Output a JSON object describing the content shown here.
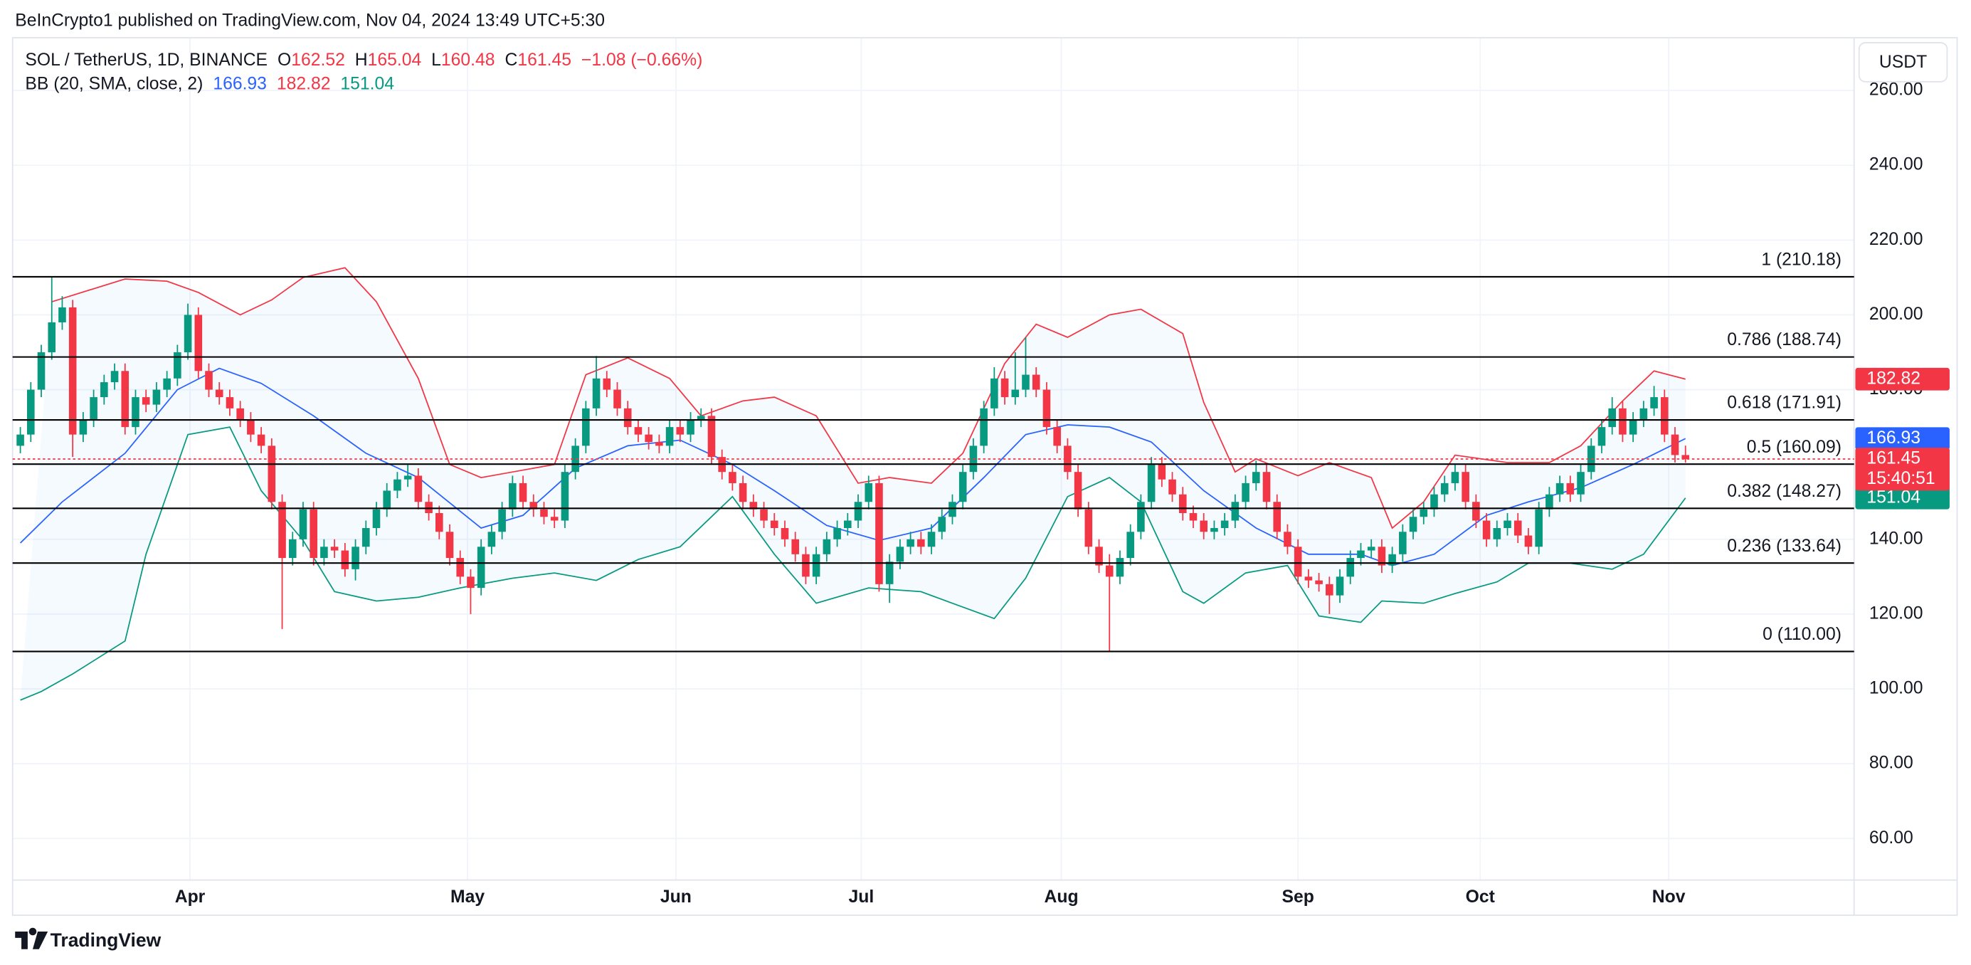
{
  "header": "BeInCrypto1 published on TradingView.com, Nov 04, 2024 13:49 UTC+5:30",
  "footer": "TradingView",
  "chart_data": {
    "type": "candlestick",
    "symbol": "SOL / TetherUS, 1D, BINANCE",
    "ohlc_labels": [
      "O",
      "H",
      "L",
      "C"
    ],
    "change": "−1.08 (−0.66%)",
    "indicator": "BB (20, SMA, close, 2)",
    "currency": "USDT",
    "countdown": "15:40:51",
    "grid": true,
    "xlim": [
      -0.74,
      175.1
    ],
    "xticks": [
      {
        "value": 16.2,
        "label": "Apr"
      },
      {
        "value": 42.7,
        "label": "May"
      },
      {
        "value": 62.6,
        "label": "Jun"
      },
      {
        "value": 80.3,
        "label": "Jul"
      },
      {
        "value": 99.4,
        "label": "Aug"
      },
      {
        "value": 122.0,
        "label": "Sep"
      },
      {
        "value": 139.4,
        "label": "Oct"
      },
      {
        "value": 157.4,
        "label": "Nov"
      }
    ],
    "ylim": [
      48.9,
      274.1
    ],
    "yticks": [
      {
        "value": 60,
        "label": "60.00"
      },
      {
        "value": 80,
        "label": "80.00"
      },
      {
        "value": 100,
        "label": "100.00"
      },
      {
        "value": 120,
        "label": "120.00"
      },
      {
        "value": 140,
        "label": "140.00"
      },
      {
        "value": 160,
        "label": "160.00"
      },
      {
        "value": 180,
        "label": "180.00"
      },
      {
        "value": 200,
        "label": "200.00"
      },
      {
        "value": 220,
        "label": "220.00"
      },
      {
        "value": 240,
        "label": "240.00"
      },
      {
        "value": 260,
        "label": "260.00"
      }
    ],
    "candles": {
      "up_color": "#089981",
      "down_color": "#f23645",
      "open": [
        165,
        168,
        180,
        190,
        198,
        202,
        168,
        172,
        178,
        182,
        185,
        170,
        178,
        176,
        180,
        183,
        190,
        200,
        185,
        180,
        178,
        175,
        172,
        168,
        165,
        150,
        135,
        140,
        148,
        135,
        138,
        137,
        132,
        138,
        143,
        148,
        153,
        156,
        157,
        150,
        147,
        142,
        135,
        130,
        127,
        138,
        142,
        148,
        155,
        150,
        148,
        146,
        145,
        158,
        165,
        175,
        183,
        180,
        175,
        170,
        168,
        166,
        165,
        170,
        168,
        172,
        173,
        162,
        158,
        155,
        150,
        148,
        145,
        143,
        140,
        136,
        130,
        136,
        140,
        143,
        145,
        150,
        155,
        128,
        134,
        138,
        140,
        138,
        142,
        146,
        150,
        158,
        165,
        175,
        183,
        178,
        180,
        184,
        180,
        170,
        165,
        158,
        148,
        138,
        133,
        130,
        135,
        142,
        150,
        160,
        156,
        152,
        147,
        145,
        142,
        143,
        145,
        150,
        155,
        158,
        150,
        142,
        138,
        130,
        129,
        128,
        125,
        130,
        135,
        137,
        138,
        133,
        136,
        142,
        146,
        148,
        152,
        155,
        158,
        150,
        145,
        140,
        143,
        145,
        141,
        138,
        148,
        152,
        155,
        152,
        158,
        165,
        170,
        175,
        168,
        172,
        175,
        178,
        168,
        162.52
      ],
      "high": [
        170,
        182,
        192,
        210,
        205,
        204,
        174,
        180,
        184,
        187,
        187,
        180,
        180,
        182,
        185,
        192,
        203,
        202,
        187,
        182,
        180,
        177,
        174,
        170,
        167,
        152,
        142,
        150,
        150,
        140,
        140,
        139,
        140,
        145,
        150,
        155,
        158,
        160,
        159,
        152,
        149,
        144,
        137,
        132,
        140,
        144,
        150,
        157,
        157,
        152,
        150,
        148,
        160,
        167,
        177,
        189,
        185,
        182,
        177,
        172,
        170,
        168,
        172,
        172,
        174,
        175,
        175,
        164,
        160,
        157,
        152,
        150,
        147,
        145,
        142,
        138,
        138,
        142,
        145,
        147,
        152,
        157,
        157,
        136,
        140,
        142,
        142,
        144,
        148,
        152,
        160,
        167,
        177,
        186,
        185,
        190,
        194,
        186,
        182,
        172,
        167,
        160,
        150,
        140,
        136,
        137,
        144,
        152,
        162,
        162,
        158,
        154,
        149,
        147,
        145,
        147,
        152,
        157,
        161,
        160,
        152,
        144,
        140,
        132,
        131,
        130,
        132,
        137,
        139,
        140,
        140,
        138,
        144,
        148,
        150,
        154,
        157,
        160,
        160,
        152,
        147,
        145,
        147,
        147,
        143,
        150,
        154,
        157,
        157,
        160,
        167,
        172,
        178,
        177,
        174,
        177,
        181,
        180,
        170,
        165.04
      ],
      "low": [
        163,
        166,
        178,
        188,
        196,
        162,
        166,
        170,
        176,
        180,
        168,
        168,
        174,
        174,
        178,
        181,
        188,
        183,
        178,
        176,
        173,
        170,
        166,
        163,
        148,
        116,
        133,
        138,
        133,
        133,
        135,
        130,
        129,
        136,
        141,
        146,
        151,
        154,
        148,
        145,
        140,
        133,
        128,
        120,
        125,
        136,
        140,
        146,
        148,
        146,
        144,
        143,
        143,
        156,
        163,
        173,
        178,
        173,
        168,
        166,
        164,
        163,
        163,
        166,
        166,
        170,
        160,
        156,
        153,
        148,
        146,
        143,
        141,
        138,
        134,
        128,
        128,
        134,
        138,
        141,
        143,
        148,
        126,
        123,
        132,
        136,
        136,
        136,
        140,
        144,
        148,
        156,
        163,
        173,
        176,
        176,
        178,
        178,
        168,
        163,
        156,
        146,
        136,
        131,
        110,
        128,
        133,
        140,
        148,
        154,
        150,
        145,
        143,
        140,
        140,
        141,
        143,
        148,
        153,
        148,
        140,
        136,
        128,
        127,
        126,
        120,
        123,
        128,
        133,
        135,
        131,
        131,
        134,
        140,
        144,
        146,
        150,
        153,
        148,
        143,
        138,
        138,
        141,
        139,
        136,
        136,
        146,
        150,
        150,
        150,
        156,
        163,
        168,
        166,
        166,
        170,
        173,
        166,
        160.5,
        160.48
      ],
      "close": [
        168,
        180,
        190,
        198,
        202,
        168,
        172,
        178,
        182,
        185,
        170,
        178,
        176,
        180,
        183,
        190,
        200,
        185,
        180,
        178,
        175,
        172,
        168,
        165,
        150,
        135,
        140,
        148,
        135,
        138,
        137,
        132,
        138,
        143,
        148,
        153,
        156,
        157,
        150,
        147,
        142,
        135,
        130,
        127,
        138,
        142,
        148,
        155,
        150,
        148,
        146,
        145,
        158,
        165,
        175,
        183,
        180,
        175,
        170,
        168,
        166,
        165,
        170,
        168,
        172,
        173,
        162,
        158,
        155,
        150,
        148,
        145,
        143,
        140,
        136,
        130,
        136,
        140,
        143,
        145,
        150,
        155,
        128,
        134,
        138,
        140,
        138,
        142,
        146,
        150,
        158,
        165,
        175,
        183,
        178,
        180,
        184,
        180,
        170,
        165,
        158,
        148,
        138,
        133,
        130,
        135,
        142,
        150,
        160,
        156,
        152,
        147,
        145,
        142,
        143,
        145,
        150,
        155,
        158,
        150,
        142,
        138,
        130,
        129,
        128,
        125,
        130,
        135,
        137,
        138,
        133,
        136,
        142,
        146,
        148,
        152,
        155,
        158,
        150,
        145,
        140,
        143,
        145,
        141,
        138,
        148,
        152,
        155,
        152,
        158,
        165,
        170,
        175,
        168,
        172,
        175,
        178,
        168,
        162.52,
        161.45
      ]
    },
    "bands": [
      {
        "color": "#f23645",
        "x": [
          3,
          10,
          14,
          17,
          21,
          24,
          27,
          31,
          34,
          38,
          41,
          44,
          47,
          51,
          54,
          58,
          62,
          65,
          69,
          72,
          76,
          80,
          83,
          87,
          90,
          94,
          97,
          100,
          104,
          107,
          111,
          113,
          116,
          118,
          122,
          125,
          129,
          131,
          134,
          137,
          142,
          146,
          149,
          153,
          156,
          159
        ],
        "values": [
          203.5,
          209.6,
          209,
          206,
          200,
          204,
          210,
          212.6,
          203.5,
          183,
          160,
          156.5,
          158,
          160,
          184,
          188.5,
          183,
          173,
          177,
          178,
          173,
          155,
          156.5,
          155,
          163,
          187,
          197.5,
          194,
          200,
          201.5,
          195,
          176.6,
          158,
          161.5,
          157,
          160.5,
          156.5,
          143,
          150,
          162.5,
          160.5,
          160.5,
          165,
          177,
          185,
          182.82
        ]
      },
      {
        "color": "#2962ff",
        "x": [
          0,
          4,
          10,
          15,
          19,
          23,
          28,
          33,
          38,
          44,
          48,
          53,
          58,
          63,
          68,
          72,
          77,
          82,
          87,
          92,
          96,
          100,
          104,
          108,
          113,
          118,
          123,
          128,
          131,
          135,
          140,
          144,
          149,
          154,
          159
        ],
        "values": [
          139,
          150,
          163,
          180,
          185.7,
          181.7,
          173,
          163,
          156.5,
          143,
          146.4,
          159,
          165,
          166.5,
          160,
          153,
          143.7,
          139.7,
          143,
          156.5,
          168,
          170.6,
          170,
          166,
          153,
          143,
          136,
          136,
          133,
          136,
          146.4,
          150,
          153.8,
          160,
          166.93
        ]
      },
      {
        "color": "#089981",
        "x": [
          0,
          2,
          5,
          10,
          12,
          16,
          20,
          23,
          27,
          30,
          34,
          38,
          42,
          47,
          51,
          55,
          59,
          63,
          68,
          72,
          76,
          81,
          86,
          89,
          93,
          96,
          100,
          104,
          107,
          111,
          113,
          117,
          121,
          124,
          128,
          130,
          134,
          137,
          141,
          144,
          148,
          152,
          155,
          159
        ],
        "values": [
          97,
          99.3,
          104,
          112.8,
          136,
          168,
          170,
          153,
          139.7,
          126,
          123.5,
          124.5,
          127,
          129.6,
          131,
          129,
          134.6,
          138,
          151.4,
          136,
          122.9,
          127,
          126,
          122.9,
          118.8,
          129.6,
          151.4,
          156.5,
          150,
          126,
          122.9,
          131,
          133,
          119.5,
          117.8,
          123.5,
          122.9,
          125.5,
          128.6,
          133.6,
          133.6,
          132,
          136,
          151.04
        ]
      }
    ],
    "fib_levels": [
      {
        "value": 210.18,
        "label": "1 (210.18)"
      },
      {
        "value": 188.74,
        "label": "0.786 (188.74)"
      },
      {
        "value": 171.91,
        "label": "0.618 (171.91)"
      },
      {
        "value": 160.09,
        "label": "0.5 (160.09)"
      },
      {
        "value": 148.27,
        "label": "0.382 (148.27)"
      },
      {
        "value": 133.64,
        "label": "0.236 (133.64)"
      },
      {
        "value": 110.0,
        "label": "0 (110.00)"
      }
    ]
  }
}
